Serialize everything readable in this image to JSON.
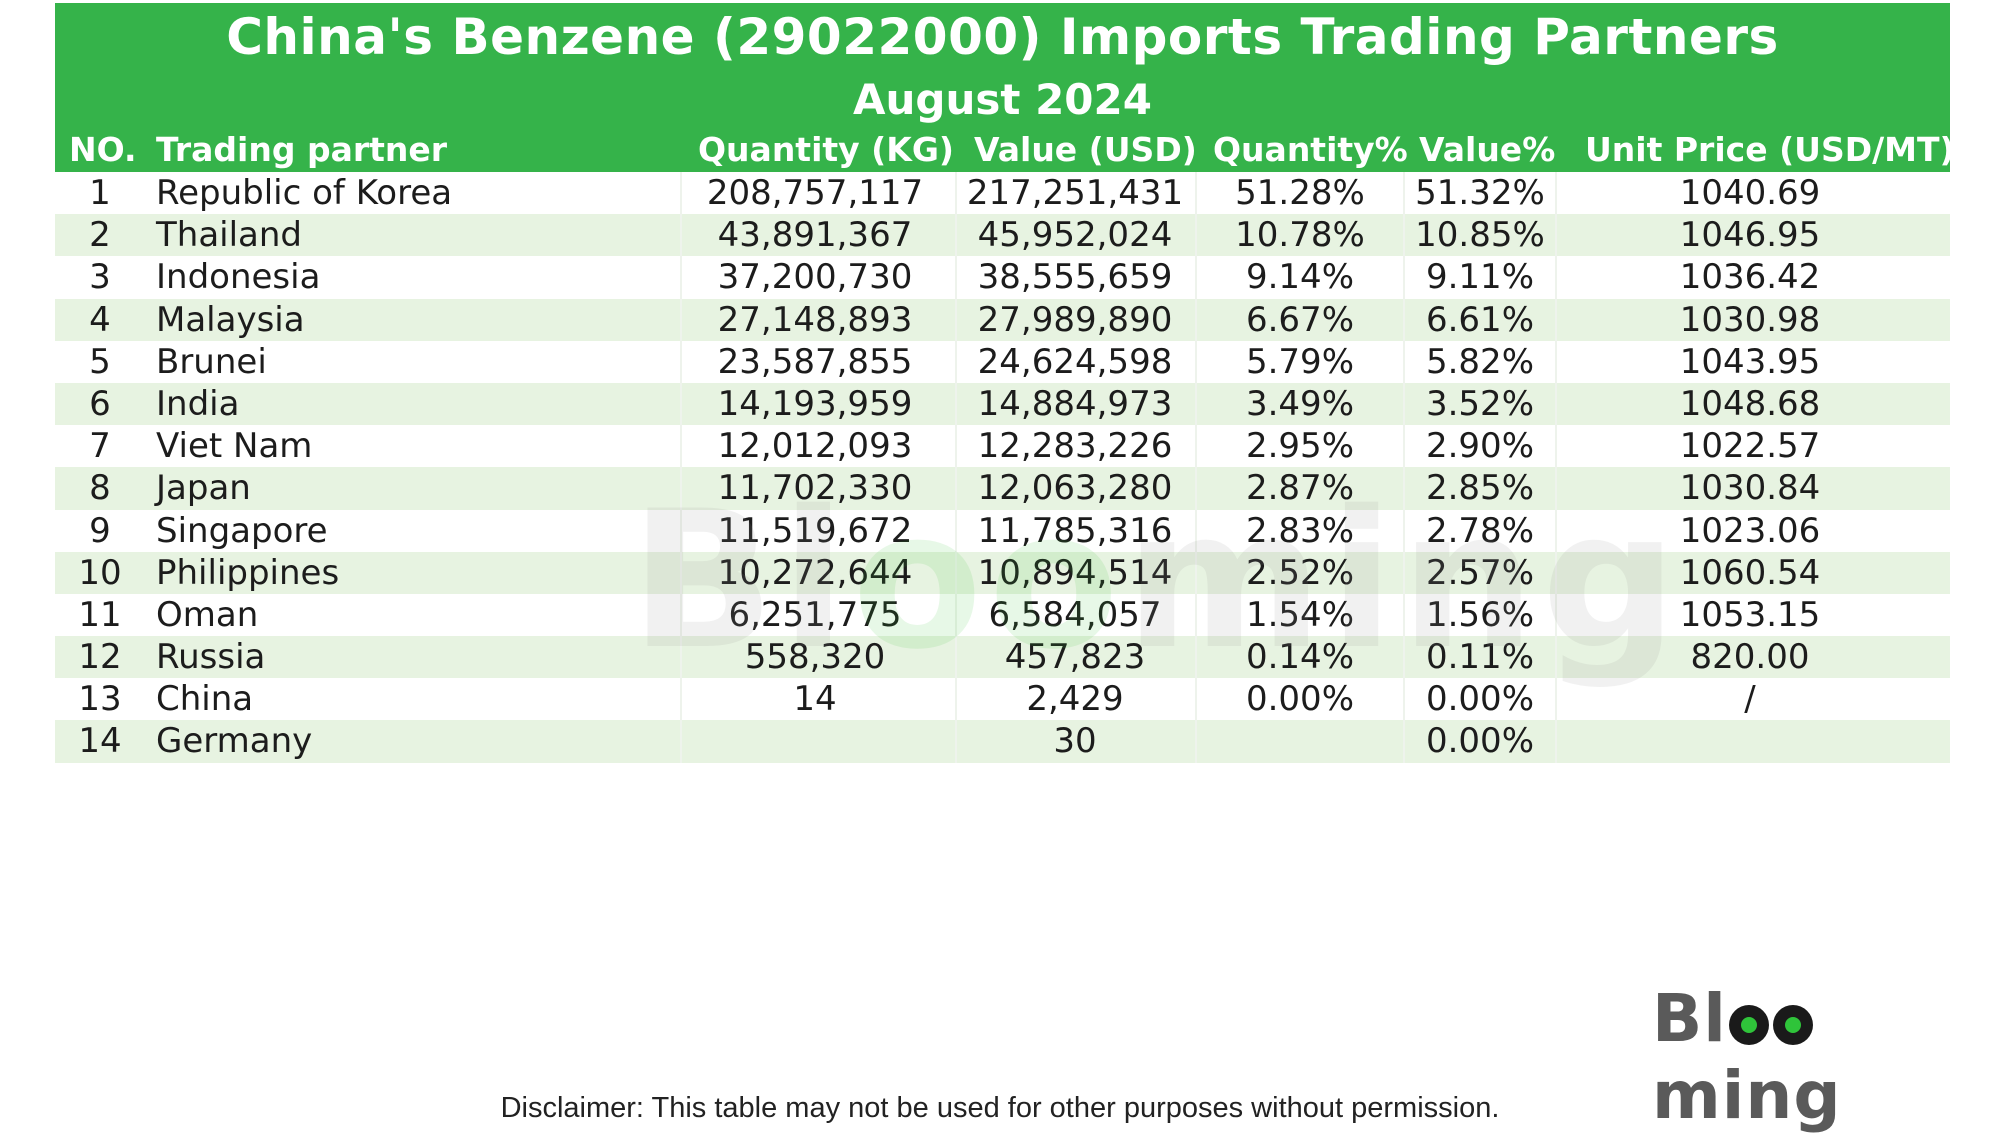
{
  "chart_data": {
    "type": "table",
    "title": "China's Benzene (29022000) Imports Trading Partners",
    "subtitle": "August 2024",
    "columns": [
      "NO.",
      "Trading partner",
      "Quantity (KG)",
      "Value (USD)",
      "Quantity%",
      "Value%",
      "Unit Price (USD/MT)"
    ],
    "rows": [
      [
        "1",
        "Republic of Korea",
        "208,757,117",
        "217,251,431",
        "51.28%",
        "51.32%",
        "1040.69"
      ],
      [
        "2",
        "Thailand",
        "43,891,367",
        "45,952,024",
        "10.78%",
        "10.85%",
        "1046.95"
      ],
      [
        "3",
        "Indonesia",
        "37,200,730",
        "38,555,659",
        "9.14%",
        "9.11%",
        "1036.42"
      ],
      [
        "4",
        "Malaysia",
        "27,148,893",
        "27,989,890",
        "6.67%",
        "6.61%",
        "1030.98"
      ],
      [
        "5",
        "Brunei",
        "23,587,855",
        "24,624,598",
        "5.79%",
        "5.82%",
        "1043.95"
      ],
      [
        "6",
        "India",
        "14,193,959",
        "14,884,973",
        "3.49%",
        "3.52%",
        "1048.68"
      ],
      [
        "7",
        "Viet Nam",
        "12,012,093",
        "12,283,226",
        "2.95%",
        "2.90%",
        "1022.57"
      ],
      [
        "8",
        "Japan",
        "11,702,330",
        "12,063,280",
        "2.87%",
        "2.85%",
        "1030.84"
      ],
      [
        "9",
        "Singapore",
        "11,519,672",
        "11,785,316",
        "2.83%",
        "2.78%",
        "1023.06"
      ],
      [
        "10",
        "Philippines",
        "10,272,644",
        "10,894,514",
        "2.52%",
        "2.57%",
        "1060.54"
      ],
      [
        "11",
        "Oman",
        "6,251,775",
        "6,584,057",
        "1.54%",
        "1.56%",
        "1053.15"
      ],
      [
        "12",
        "Russia",
        "558,320",
        "457,823",
        "0.14%",
        "0.11%",
        "820.00"
      ],
      [
        "13",
        "China",
        "14",
        "2,429",
        "0.00%",
        "0.00%",
        "/"
      ],
      [
        "14",
        "Germany",
        "",
        "30",
        "",
        "0.00%",
        ""
      ]
    ]
  },
  "logo_text": "Blooming",
  "watermark_text": "Blooming",
  "disclaimer": "Disclaimer: This table may not be used for other purposes without permission.",
  "colors": {
    "header_bg": "#35b34a",
    "row_even_bg": "#e7f3e1",
    "row_odd_bg": "#ffffff",
    "logo_dot": "#2fc43a"
  }
}
